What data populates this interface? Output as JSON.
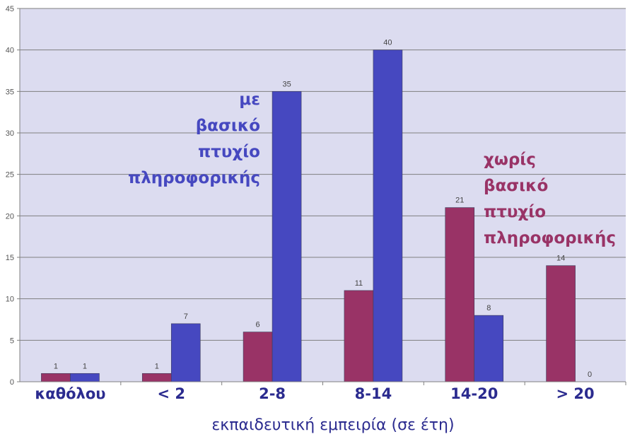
{
  "chart_data": {
    "type": "bar",
    "categories": [
      "καθόλου",
      "< 2",
      "2-8",
      "8-14",
      "14-20",
      "> 20"
    ],
    "series": [
      {
        "values": [
          1,
          1,
          6,
          11,
          21,
          14
        ],
        "color": "#993366"
      },
      {
        "values": [
          1,
          7,
          35,
          40,
          8,
          0
        ],
        "color": "#4648c0"
      }
    ],
    "xlabel": "εκπαιδευτική εμπειρία (σε έτη)",
    "ylabel": "",
    "ylim": [
      0,
      45
    ],
    "yticks": [
      0,
      5,
      10,
      15,
      20,
      25,
      30,
      35,
      40,
      45
    ],
    "grid": true,
    "plot_background": "#dcdcf0",
    "annotations": [
      {
        "lines": [
          "με",
          "βασικό",
          "πτυχίο",
          "πληροφορικής"
        ],
        "color": "#4648c0"
      },
      {
        "lines": [
          "χωρίς",
          "βασικό",
          "πτυχίο",
          "πληροφορικής"
        ],
        "color": "#993366"
      }
    ]
  }
}
